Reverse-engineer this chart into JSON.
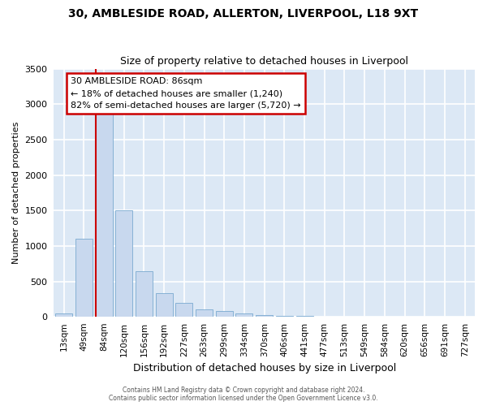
{
  "title_line1": "30, AMBLESIDE ROAD, ALLERTON, LIVERPOOL, L18 9XT",
  "title_line2": "Size of property relative to detached houses in Liverpool",
  "xlabel": "Distribution of detached houses by size in Liverpool",
  "ylabel": "Number of detached properties",
  "bin_labels": [
    "13sqm",
    "49sqm",
    "84sqm",
    "120sqm",
    "156sqm",
    "192sqm",
    "227sqm",
    "263sqm",
    "299sqm",
    "334sqm",
    "370sqm",
    "406sqm",
    "441sqm",
    "477sqm",
    "513sqm",
    "549sqm",
    "584sqm",
    "620sqm",
    "656sqm",
    "691sqm",
    "727sqm"
  ],
  "bar_heights": [
    50,
    1100,
    2950,
    1500,
    650,
    330,
    200,
    105,
    85,
    50,
    30,
    20,
    20,
    5,
    0,
    0,
    0,
    0,
    0,
    0,
    0
  ],
  "bar_color": "#c8d8ee",
  "bar_edge_color": "#7aaad0",
  "ylim": [
    0,
    3500
  ],
  "yticks": [
    0,
    500,
    1000,
    1500,
    2000,
    2500,
    3000,
    3500
  ],
  "property_label": "30 AMBLESIDE ROAD: 86sqm",
  "annotation_line1": "← 18% of detached houses are smaller (1,240)",
  "annotation_line2": "82% of semi-detached houses are larger (5,720) →",
  "vline_color": "#cc0000",
  "annotation_box_edgecolor": "#cc0000",
  "annotation_box_facecolor": "#ffffff",
  "bg_color": "#dce8f5",
  "plot_bg_color": "#dce8f5",
  "fig_bg_color": "#ffffff",
  "grid_color": "#ffffff",
  "vline_x": 2.0,
  "footer_line1": "Contains HM Land Registry data © Crown copyright and database right 2024.",
  "footer_line2": "Contains public sector information licensed under the Open Government Licence v3.0."
}
